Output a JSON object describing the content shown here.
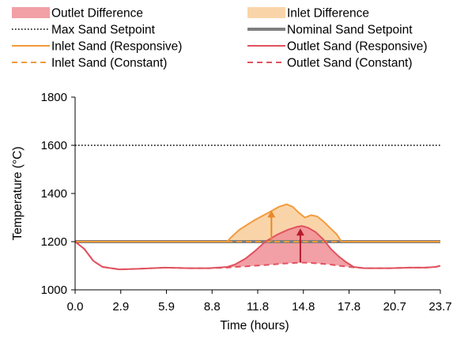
{
  "chart_data": {
    "type": "line",
    "xlabel": "Time (hours)",
    "ylabel": "Temperature (°C)",
    "xlim": [
      0,
      24
    ],
    "ylim": [
      1000,
      1800
    ],
    "x_ticks": [
      "0.0",
      "2.9",
      "5.9",
      "8.8",
      "11.8",
      "14.8",
      "17.8",
      "20.7",
      "23.7"
    ],
    "y_ticks": [
      "1000",
      "1200",
      "1400",
      "1600",
      "1800"
    ],
    "legend_position": "top",
    "legend": [
      {
        "label": "Outlet Difference",
        "style": "fill",
        "color": "#f08e97"
      },
      {
        "label": "Inlet Difference",
        "style": "fill",
        "color": "#f9cd9a"
      },
      {
        "label": "Max Sand Setpoint",
        "style": "dotted",
        "color": "#000000"
      },
      {
        "label": "Nominal Sand Setpoint",
        "style": "thick",
        "color": "#7f7f7f"
      },
      {
        "label": "Inlet Sand (Responsive)",
        "style": "solid",
        "color": "#f29b3a"
      },
      {
        "label": "Outlet Sand (Responsive)",
        "style": "solid",
        "color": "#e0525e"
      },
      {
        "label": "Inlet Sand (Constant)",
        "style": "dashed",
        "color": "#f29b3a"
      },
      {
        "label": "Outlet Sand (Constant)",
        "style": "dashed",
        "color": "#e0525e"
      }
    ],
    "series": [
      {
        "name": "Max Sand Setpoint",
        "x": [
          0,
          24
        ],
        "y": [
          1600,
          1600
        ]
      },
      {
        "name": "Nominal Sand Setpoint",
        "x": [
          0,
          24
        ],
        "y": [
          1200,
          1200
        ]
      },
      {
        "name": "Inlet Sand (Responsive)",
        "x": [
          0,
          10,
          10.2,
          10.8,
          11.8,
          12.7,
          13.4,
          13.9,
          14.3,
          14.7,
          15.1,
          15.5,
          15.9,
          16.3,
          16.7,
          17.2,
          17.5,
          24
        ],
        "y": [
          1200,
          1200,
          1215,
          1250,
          1290,
          1320,
          1345,
          1355,
          1345,
          1320,
          1300,
          1310,
          1305,
          1285,
          1260,
          1230,
          1200,
          1200
        ]
      },
      {
        "name": "Inlet Sand (Constant)",
        "x": [
          0,
          24
        ],
        "y": [
          1200,
          1200
        ]
      },
      {
        "name": "Outlet Sand (Responsive)",
        "x": [
          0,
          0.6,
          1.2,
          1.8,
          2.9,
          4,
          5.9,
          7.5,
          8.8,
          10,
          10.5,
          11.2,
          11.8,
          12.5,
          13.3,
          14,
          14.6,
          14.9,
          15.3,
          15.8,
          16.3,
          16.8,
          17.3,
          17.8,
          18.3,
          19,
          20.7,
          22,
          23,
          23.7,
          24
        ],
        "y": [
          1200,
          1170,
          1120,
          1095,
          1085,
          1087,
          1092,
          1090,
          1090,
          1095,
          1105,
          1130,
          1160,
          1200,
          1230,
          1250,
          1262,
          1265,
          1258,
          1240,
          1210,
          1170,
          1140,
          1115,
          1095,
          1090,
          1090,
          1092,
          1092,
          1095,
          1100
        ]
      },
      {
        "name": "Outlet Sand (Constant)",
        "x": [
          0,
          0.6,
          1.2,
          1.8,
          2.9,
          4,
          5.9,
          7.5,
          8.8,
          10,
          10.5,
          11.2,
          11.8,
          12.5,
          13.3,
          14,
          14.6,
          14.9,
          15.3,
          15.8,
          16.3,
          16.8,
          17.3,
          17.8,
          18.3,
          19,
          20.7,
          22,
          23,
          23.7,
          24
        ],
        "y": [
          1200,
          1170,
          1120,
          1095,
          1085,
          1087,
          1092,
          1090,
          1090,
          1092,
          1095,
          1097,
          1100,
          1103,
          1107,
          1110,
          1112,
          1113,
          1112,
          1110,
          1108,
          1105,
          1100,
          1097,
          1093,
          1090,
          1090,
          1092,
          1092,
          1095,
          1100
        ]
      }
    ],
    "annotations": [
      {
        "type": "arrow",
        "x": 12.9,
        "y_from": 1200,
        "y_to": 1330,
        "color": "#e8892c"
      },
      {
        "type": "arrow",
        "x": 14.8,
        "y_from": 1113,
        "y_to": 1255,
        "color": "#b51c2a"
      }
    ]
  }
}
